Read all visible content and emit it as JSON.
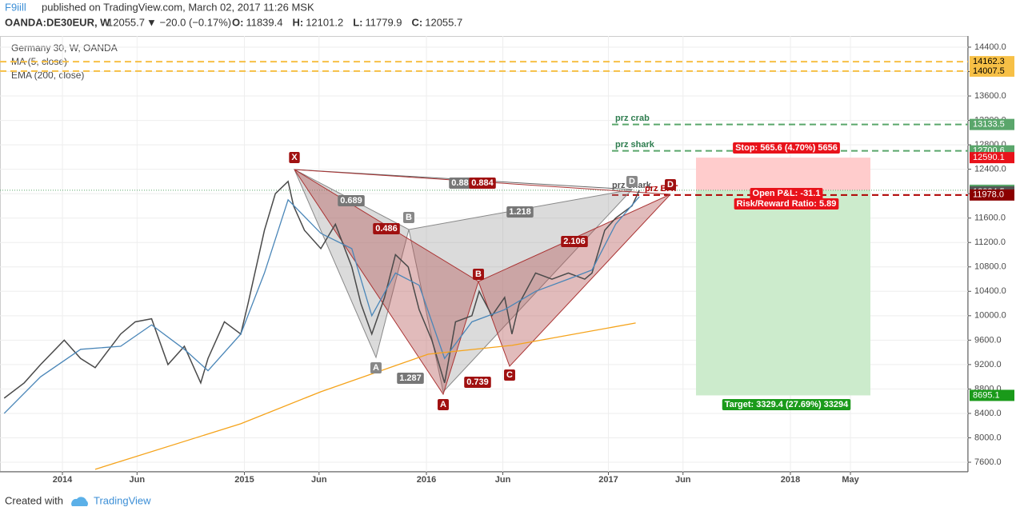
{
  "header": {
    "author": "F9iill",
    "published": "published on TradingView.com, March 02, 2017 11:26 MSK",
    "symbol": "OANDA:DE30EUR, W",
    "last": "12055.7",
    "change": "▼ −20.0 (−0.17%)",
    "ohlc": [
      "O:",
      "11839.4",
      "H:",
      "12101.2",
      "L:",
      "11779.9",
      "C:",
      "12055.7"
    ]
  },
  "chart_data": {
    "type": "line",
    "title": "Germany 30, W, OANDA",
    "xlim": [
      2013.657,
      2018.976
    ],
    "ylim": [
      7443,
      14583
    ],
    "xticks": [
      {
        "value": 2014,
        "label": "2014"
      },
      {
        "value": 2014.41,
        "label": "Jun"
      },
      {
        "value": 2015,
        "label": "2015"
      },
      {
        "value": 2015.41,
        "label": "Jun"
      },
      {
        "value": 2016,
        "label": "2016"
      },
      {
        "value": 2016.42,
        "label": "Jun"
      },
      {
        "value": 2017,
        "label": "2017"
      },
      {
        "value": 2017.41,
        "label": "Jun"
      },
      {
        "value": 2018,
        "label": "2018"
      },
      {
        "value": 2018.33,
        "label": "May"
      }
    ],
    "yticks": [
      {
        "value": 14400,
        "label": "14400.0"
      },
      {
        "value": 14000,
        "label": "14000.0"
      },
      {
        "value": 13600,
        "label": "13600.0"
      },
      {
        "value": 13200,
        "label": "13200.0"
      },
      {
        "value": 12800,
        "label": "12800.0"
      },
      {
        "value": 12400,
        "label": "12400.0"
      },
      {
        "value": 12000,
        "label": "12000.0"
      },
      {
        "value": 11600,
        "label": "11600.0"
      },
      {
        "value": 11200,
        "label": "11200.0"
      },
      {
        "value": 10800,
        "label": "10800.0"
      },
      {
        "value": 10400,
        "label": "10400.0"
      },
      {
        "value": 10000,
        "label": "10000.0"
      },
      {
        "value": 9600,
        "label": "9600.0"
      },
      {
        "value": 9200,
        "label": "9200.0"
      },
      {
        "value": 8800,
        "label": "8800.0"
      },
      {
        "value": 8400,
        "label": "8400.0"
      },
      {
        "value": 8000,
        "label": "8000.0"
      },
      {
        "value": 7600,
        "label": "7600.0"
      }
    ],
    "grid": true,
    "series": [
      {
        "color": "#4a4a4a",
        "x": [
          2013.68,
          2013.79,
          2013.88,
          2014.01,
          2014.1,
          2014.18,
          2014.32,
          2014.4,
          2014.49,
          2014.58,
          2014.67,
          2014.76,
          2014.8,
          2014.89,
          2014.98,
          2015.02,
          2015.11,
          2015.17,
          2015.24,
          2015.27,
          2015.33,
          2015.42,
          2015.5,
          2015.59,
          2015.64,
          2015.7,
          2015.77,
          2015.83,
          2015.9,
          2015.96,
          2016.03,
          2016.1,
          2016.16,
          2016.25,
          2016.29,
          2016.36,
          2016.43,
          2016.47,
          2016.51,
          2016.6,
          2016.69,
          2016.78,
          2016.87,
          2016.91,
          2016.98,
          2017.04,
          2017.13,
          2017.17
        ],
        "values": [
          8650,
          8900,
          9200,
          9600,
          9300,
          9150,
          9700,
          9900,
          9950,
          9200,
          9500,
          8900,
          9300,
          9900,
          9700,
          10200,
          11400,
          12000,
          12200,
          11800,
          11400,
          11100,
          11500,
          10800,
          10200,
          9700,
          10300,
          11000,
          10800,
          10100,
          9600,
          8900,
          9900,
          10000,
          10400,
          10000,
          10300,
          9700,
          10200,
          10700,
          10600,
          10700,
          10600,
          10700,
          11400,
          11600,
          11800,
          12055.7
        ]
      },
      {
        "name": "MA (5, close)",
        "color": "#4a86b8",
        "x": [
          2013.68,
          2013.88,
          2014.1,
          2014.32,
          2014.49,
          2014.67,
          2014.8,
          2014.98,
          2015.11,
          2015.24,
          2015.42,
          2015.59,
          2015.7,
          2015.83,
          2015.96,
          2016.1,
          2016.25,
          2016.43,
          2016.6,
          2016.78,
          2016.91,
          2017.04,
          2017.17
        ],
        "values": [
          8400,
          9000,
          9450,
          9500,
          9850,
          9450,
          9100,
          9700,
          10700,
          11900,
          11350,
          11100,
          10000,
          10700,
          10500,
          9300,
          9900,
          10100,
          10400,
          10600,
          10750,
          11500,
          11950
        ]
      },
      {
        "name": "EMA (200, close)",
        "color": "#f5a31a",
        "x": [
          2014.18,
          2014.98,
          2015.42,
          2016.01,
          2016.47,
          2017.15
        ],
        "values": [
          7484,
          8231,
          8755,
          9370,
          9515,
          9881
        ]
      }
    ],
    "price_labels": [
      {
        "value": 14162.3,
        "color": "#f7c046",
        "text_color": "#000",
        "line_color": "#f7c046"
      },
      {
        "value": 14007.5,
        "color": "#f7c046",
        "text_color": "#000",
        "line_color": "#f7c046"
      },
      {
        "value": 13133.5,
        "color": "#5aa66b",
        "text_color": "#fff",
        "line_color": "#5aa66b"
      },
      {
        "value": 12700.6,
        "color": "#5aa66b",
        "text_color": "#fff",
        "line_color": "#5aa66b"
      },
      {
        "value": 12590.1,
        "color": "#e8121a",
        "text_color": "#fff"
      },
      {
        "value": 12055.7,
        "color": "#5aa66b",
        "text_color": "#fff"
      },
      {
        "value": 12025.3,
        "color": "#111111",
        "text_color": "#fff"
      },
      {
        "value": 12024.5,
        "color": "#555555",
        "text_color": "#fff"
      },
      {
        "value": 11978,
        "label": "11978.0",
        "color": "#8b0000",
        "text_color": "#fff",
        "line_color": "#b00000"
      },
      {
        "value": 8695.1,
        "color": "#1a9a1a",
        "text_color": "#fff"
      }
    ]
  },
  "annotations": {
    "prz": [
      "prz crab",
      "prz shark",
      "prz shark",
      "prz BAT"
    ],
    "red_points": [
      "X",
      "A",
      "B",
      "C",
      "D"
    ],
    "gray_points": [
      "A",
      "B",
      "D"
    ],
    "ratios_gray": [
      "0.689",
      "1.218",
      "1.287",
      "0.88"
    ],
    "ratios_red": [
      "0.486",
      "2.106",
      "0.739",
      "0.884"
    ],
    "position": {
      "stop": "Stop: 565.6 (4.70%) 5656",
      "pnl": "Open P&L: -31.1",
      "rr": "Risk/Reward Ratio: 5.89",
      "target": "Target: 3329.4 (27.69%) 33294"
    }
  },
  "footer": {
    "created": "Created with",
    "brand": "TradingView"
  }
}
